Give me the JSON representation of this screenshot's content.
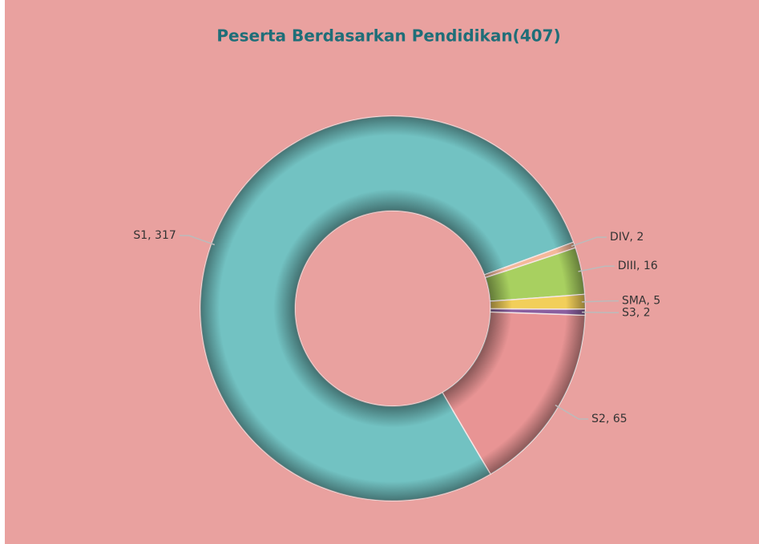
{
  "chart_data": {
    "type": "donut",
    "title": "Peserta Berdasarkan Pendidikan(407)",
    "categories": [
      "S2",
      "S1",
      "DIV",
      "DIII",
      "SMA",
      "S3"
    ],
    "values": [
      65,
      317,
      2,
      16,
      5,
      2
    ],
    "colors": [
      "#e89494",
      "#72c2c2",
      "#f5b89a",
      "#a8d060",
      "#f2cf5a",
      "#8a5fa0"
    ]
  }
}
